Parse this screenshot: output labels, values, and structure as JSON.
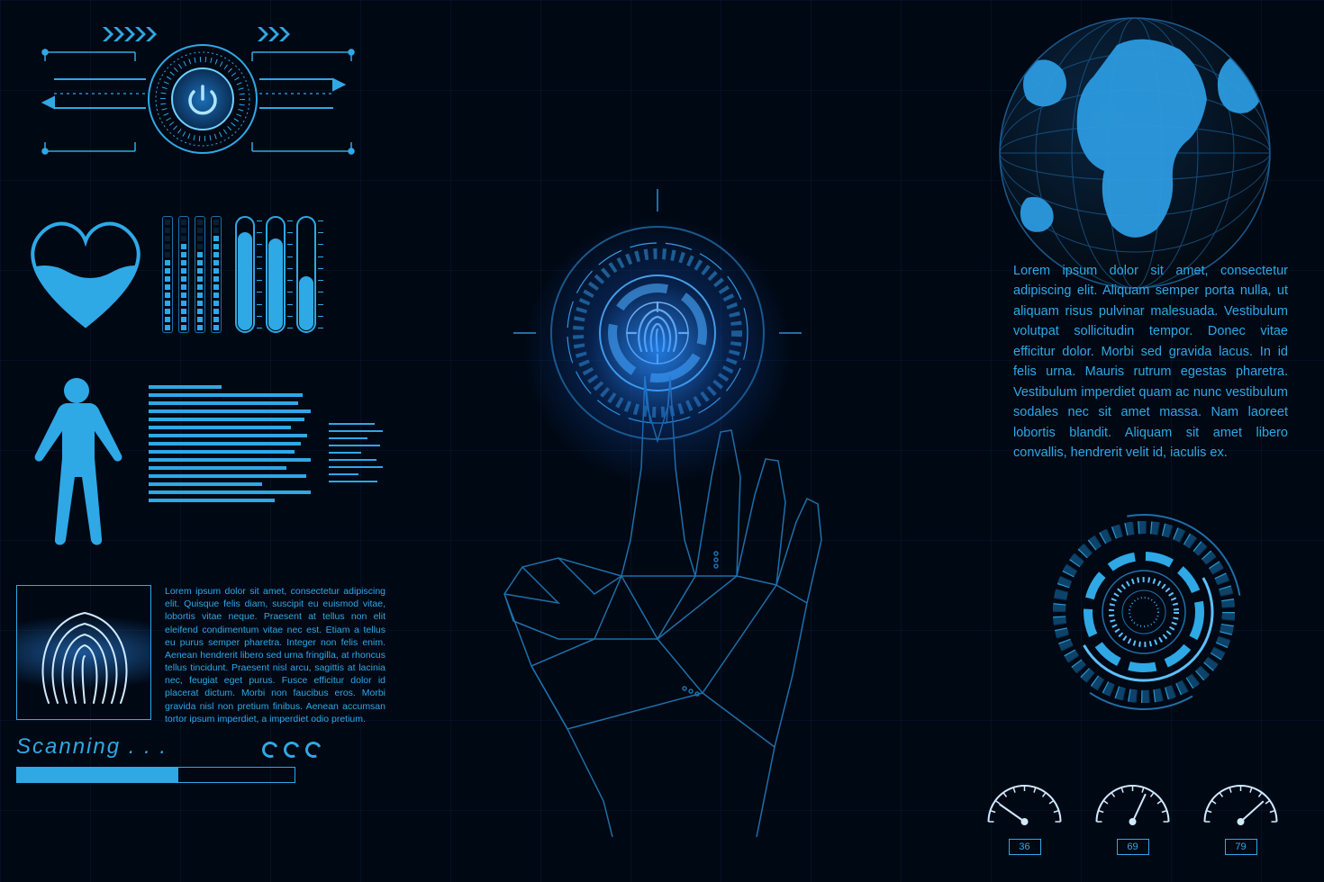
{
  "colors": {
    "background": "#000814",
    "accent": "#2fa8e6",
    "accent_light": "#6fd0ff",
    "stroke": "#1e6fa8",
    "grid": "#123a5c",
    "glow": "#1878d8"
  },
  "power_widget": {
    "icon": "power",
    "ring_segments": 48
  },
  "vitals": {
    "heart_fill_pct": 55,
    "equalizer_columns": [
      9,
      11,
      10,
      12
    ],
    "equalizer_max": 14,
    "tubes": [
      88,
      82,
      48
    ]
  },
  "body_scan": {
    "text_line_widths_main": [
      45,
      95,
      92,
      100,
      96,
      88,
      98,
      94,
      90,
      100,
      85,
      97,
      70,
      100,
      78
    ],
    "text_line_widths_side": [
      85,
      100,
      72,
      95,
      60,
      88,
      100,
      55,
      90
    ]
  },
  "fingerprint_panel": {
    "body_text": "Lorem ipsum dolor sit amet, consectetur adipiscing elit. Quisque felis diam, suscipit eu euismod vitae, lobortis vitae neque. Praesent at tellus non elit eleifend condimentum vitae nec est. Etiam a tellus eu purus semper pharetra. Integer non felis enim. Aenean hendrerit libero sed urna fringilla, at rhoncus tellus tincidunt. Praesent nisl arcu, sagittis at lacinia nec, feugiat eget purus. Fusce efficitur dolor id placerat dictum. Morbi non faucibus eros. Morbi gravida nisl non pretium finibus. Aenean accumsan tortor ipsum imperdiet, a imperdiet odio pretium.",
    "scan_label": "Scanning . . .",
    "progress_pct": 58
  },
  "globe": {
    "lat_lines": 7,
    "lon_lines": 9
  },
  "right_paragraph": "Lorem ipsum dolor sit amet, consectetur adipiscing elit. Aliquam semper porta nulla, ut aliquam risus pulvinar malesuada. Vestibulum volutpat sollicitudin tempor. Donec vitae efficitur dolor. Morbi sed gravida lacus. In id felis urna. Mauris rutrum egestas pharetra. Vestibulum imperdiet quam ac nunc vestibulum sodales nec sit amet massa. Nam laoreet lobortis blandit. Aliquam sit amet libero convallis, hendrerit velit id, iaculis ex.",
  "gauges": [
    {
      "value": 36,
      "angle_deg": -55
    },
    {
      "value": 69,
      "angle_deg": 25
    },
    {
      "value": 79,
      "angle_deg": 48
    }
  ]
}
